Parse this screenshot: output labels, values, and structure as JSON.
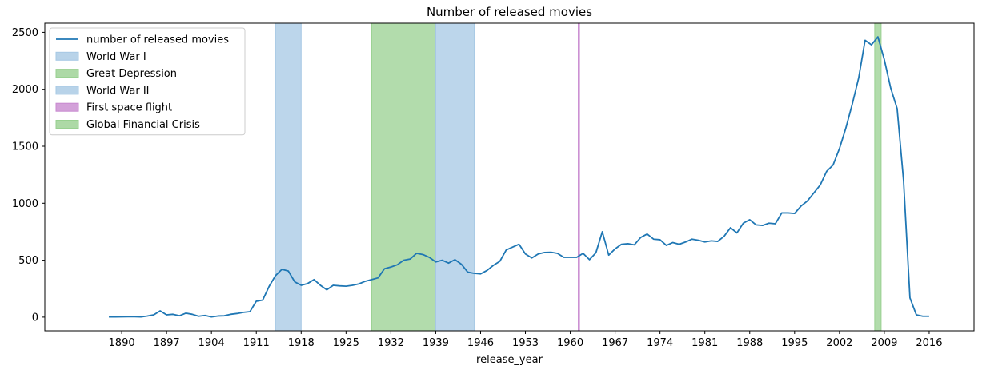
{
  "chart_data": {
    "type": "line",
    "title": "Number of released movies",
    "xlabel": "release_year",
    "ylabel": "",
    "xlim": [
      1878,
      2023
    ],
    "ylim": [
      -120,
      2580
    ],
    "xticks": [
      1890,
      1897,
      1904,
      1911,
      1918,
      1925,
      1932,
      1939,
      1946,
      1953,
      1960,
      1967,
      1974,
      1981,
      1988,
      1995,
      2002,
      2009,
      2016
    ],
    "yticks": [
      0,
      500,
      1000,
      1500,
      2000,
      2500
    ],
    "legend_position": "top-left",
    "grid": false,
    "series": [
      {
        "name": "number of released movies",
        "color": "#1f77b4",
        "x": [
          1888,
          1889,
          1890,
          1891,
          1892,
          1893,
          1894,
          1895,
          1896,
          1897,
          1898,
          1899,
          1900,
          1901,
          1902,
          1903,
          1904,
          1905,
          1906,
          1907,
          1908,
          1909,
          1910,
          1911,
          1912,
          1913,
          1914,
          1915,
          1916,
          1917,
          1918,
          1919,
          1920,
          1921,
          1922,
          1923,
          1924,
          1925,
          1926,
          1927,
          1928,
          1929,
          1930,
          1931,
          1932,
          1933,
          1934,
          1935,
          1936,
          1937,
          1938,
          1939,
          1940,
          1941,
          1942,
          1943,
          1944,
          1945,
          1946,
          1947,
          1948,
          1949,
          1950,
          1951,
          1952,
          1953,
          1954,
          1955,
          1956,
          1957,
          1958,
          1959,
          1960,
          1961,
          1962,
          1963,
          1964,
          1965,
          1966,
          1967,
          1968,
          1969,
          1970,
          1971,
          1972,
          1973,
          1974,
          1975,
          1976,
          1977,
          1978,
          1979,
          1980,
          1981,
          1982,
          1983,
          1984,
          1985,
          1986,
          1987,
          1988,
          1989,
          1990,
          1991,
          1992,
          1993,
          1994,
          1995,
          1996,
          1997,
          1998,
          1999,
          2000,
          2001,
          2002,
          2003,
          2004,
          2005,
          2006,
          2007,
          2008,
          2009,
          2010,
          2011,
          2012,
          2013,
          2014,
          2015,
          2016
        ],
        "values": [
          2,
          2,
          3,
          4,
          4,
          2,
          10,
          20,
          55,
          20,
          25,
          12,
          35,
          25,
          8,
          15,
          2,
          10,
          12,
          25,
          32,
          42,
          48,
          140,
          150,
          270,
          365,
          420,
          405,
          310,
          280,
          295,
          330,
          280,
          240,
          280,
          275,
          272,
          280,
          292,
          315,
          330,
          345,
          425,
          440,
          460,
          500,
          510,
          560,
          550,
          525,
          485,
          500,
          475,
          505,
          465,
          395,
          385,
          380,
          410,
          455,
          490,
          590,
          615,
          640,
          555,
          520,
          555,
          568,
          570,
          560,
          525,
          525,
          525,
          560,
          505,
          565,
          750,
          545,
          600,
          640,
          645,
          635,
          700,
          730,
          685,
          680,
          630,
          655,
          640,
          660,
          685,
          675,
          660,
          670,
          665,
          710,
          785,
          740,
          825,
          855,
          810,
          805,
          825,
          820,
          915,
          915,
          910,
          975,
          1020,
          1090,
          1160,
          1280,
          1335,
          1480,
          1660,
          1870,
          2100,
          2430,
          2390,
          2460,
          2260,
          2010,
          1830,
          1200,
          170,
          20,
          8,
          8
        ]
      }
    ],
    "spans": [
      {
        "label": "World War I",
        "start": 1914,
        "end": 1918,
        "color": "#a6c8e4"
      },
      {
        "label": "Great Depression",
        "start": 1929,
        "end": 1939,
        "color": "#98d090"
      },
      {
        "label": "World War II",
        "start": 1939,
        "end": 1945,
        "color": "#a6c8e4"
      },
      {
        "label": "First space flight",
        "start": 1961.25,
        "end": 1961.35,
        "color": "#c889d0"
      },
      {
        "label": "Global Financial Crisis",
        "start": 2007.5,
        "end": 2008.5,
        "color": "#98d090"
      }
    ]
  }
}
